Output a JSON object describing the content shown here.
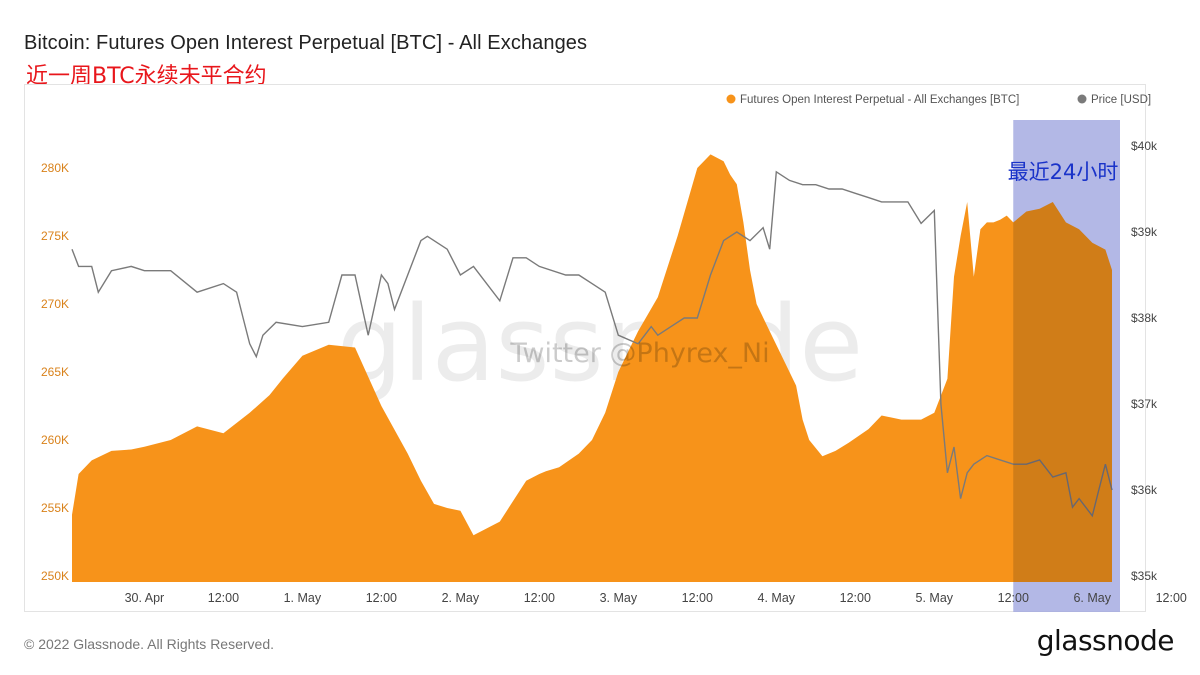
{
  "title": "Bitcoin: Futures Open Interest Perpetual [BTC] - All Exchanges",
  "annotation": "近一周BTC永续未平合约",
  "highlight_label": "最近24小时",
  "watermark": "glassnode",
  "watermark_credit": "Twitter @Phyrex_Ni",
  "copyright": "© 2022 Glassnode. All Rights Reserved.",
  "brand": "glassnode",
  "colors": {
    "open_interest": "#f7931a",
    "price": "#7a7a7a",
    "highlight": "#c7cdf7",
    "left_axis": "#d9821b",
    "annotation": "#e8161b",
    "highlight_text": "#1a33c9"
  },
  "chart_data": {
    "type": "area",
    "legend": [
      "Futures Open Interest Perpetual - All Exchanges [BTC]",
      "Price [USD]"
    ],
    "legend_position": "top-right",
    "grid": false,
    "x_ticks": [
      "30. Apr",
      "12:00",
      "1. May",
      "12:00",
      "2. May",
      "12:00",
      "3. May",
      "12:00",
      "4. May",
      "12:00",
      "5. May",
      "12:00",
      "6. May",
      "12:00"
    ],
    "x_range_hours": [
      -11,
      147
    ],
    "highlight_range_hours": [
      132,
      147
    ],
    "y_left": {
      "ticks": [
        "250K",
        "255K",
        "260K",
        "265K",
        "270K",
        "275K",
        "280K"
      ],
      "range": [
        250000,
        282500
      ]
    },
    "y_right": {
      "ticks": [
        "$35k",
        "$36k",
        "$37k",
        "$38k",
        "$39k",
        "$40k"
      ],
      "range": [
        35000,
        40000
      ]
    },
    "series": [
      {
        "name": "Futures Open Interest Perpetual - All Exchanges [BTC]",
        "axis": "left",
        "x_hours": [
          -11,
          -10,
          -8,
          -5,
          -2,
          0,
          4,
          8,
          12,
          16,
          19,
          21,
          24,
          28,
          32,
          36,
          40,
          42,
          44,
          46,
          48,
          50,
          54,
          58,
          60,
          61,
          63,
          66,
          68,
          70,
          72,
          75,
          78,
          81,
          84,
          86,
          88,
          89,
          90,
          91,
          92,
          93,
          95,
          97,
          99,
          100,
          101,
          103,
          105,
          107,
          110,
          112,
          115,
          118,
          120,
          122,
          123,
          124,
          125,
          126,
          127,
          128,
          129,
          130,
          131,
          132,
          134,
          136,
          138,
          140,
          142,
          144,
          146,
          147
        ],
        "values": [
          254500,
          257500,
          258500,
          259200,
          259300,
          259500,
          260000,
          261000,
          260500,
          262000,
          263300,
          264500,
          266200,
          267000,
          266800,
          262500,
          259000,
          257000,
          255300,
          255000,
          254800,
          253000,
          254000,
          257000,
          257500,
          257700,
          258000,
          259000,
          260000,
          262000,
          265000,
          268000,
          270500,
          275000,
          280000,
          281000,
          280500,
          279500,
          278800,
          276000,
          272500,
          270000,
          268000,
          266000,
          264000,
          261500,
          260000,
          258800,
          259200,
          259800,
          260800,
          261800,
          261500,
          261500,
          262000,
          264500,
          272000,
          275000,
          277500,
          272000,
          275500,
          276000,
          276000,
          276200,
          276500,
          276000,
          276800,
          277000,
          277500,
          276000,
          275500,
          274500,
          274000,
          272500
        ]
      },
      {
        "name": "Price [USD]",
        "axis": "right",
        "x_hours": [
          -11,
          -10,
          -8,
          -7,
          -5,
          -2,
          0,
          4,
          8,
          12,
          14,
          15,
          16,
          17,
          18,
          20,
          24,
          28,
          30,
          32,
          34,
          36,
          37,
          38,
          40,
          42,
          43,
          46,
          48,
          50,
          54,
          56,
          58,
          60,
          64,
          66,
          68,
          70,
          72,
          75,
          76,
          77,
          78,
          80,
          82,
          84,
          86,
          88,
          90,
          92,
          94,
          95,
          96,
          98,
          100,
          102,
          104,
          106,
          108,
          110,
          112,
          114,
          116,
          118,
          120,
          121,
          122,
          123,
          124,
          125,
          126,
          128,
          130,
          132,
          134,
          136,
          138,
          140,
          141,
          142,
          143,
          144,
          145,
          146,
          147
        ],
        "values": [
          38800,
          38600,
          38600,
          38300,
          38550,
          38600,
          38550,
          38550,
          38300,
          38400,
          38300,
          38000,
          37700,
          37550,
          37800,
          37950,
          37900,
          37950,
          38500,
          38500,
          37800,
          38500,
          38400,
          38100,
          38500,
          38900,
          38950,
          38800,
          38500,
          38600,
          38200,
          38700,
          38700,
          38600,
          38500,
          38500,
          38400,
          38300,
          37800,
          37700,
          37800,
          37900,
          37800,
          37900,
          38000,
          38000,
          38500,
          38900,
          39000,
          38900,
          39050,
          38800,
          39700,
          39600,
          39550,
          39550,
          39500,
          39500,
          39450,
          39400,
          39350,
          39350,
          39350,
          39100,
          39250,
          37000,
          36200,
          36500,
          35900,
          36200,
          36300,
          36400,
          36350,
          36300,
          36300,
          36350,
          36150,
          36200,
          35800,
          35900,
          35800,
          35700,
          36000,
          36300,
          36000
        ]
      }
    ]
  }
}
